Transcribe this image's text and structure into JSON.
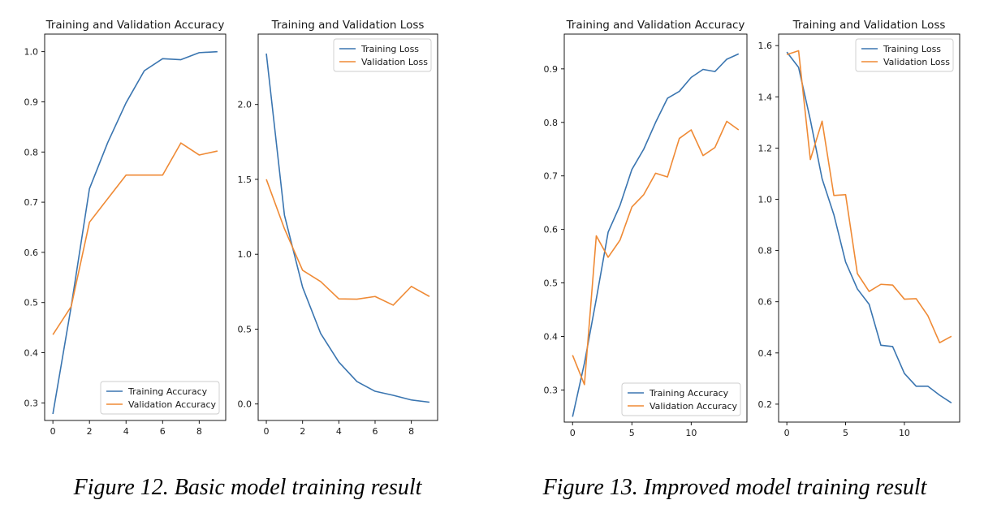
{
  "colors": {
    "training": "#3a75b0",
    "validation": "#ef8a35",
    "axes": "#000000",
    "text": "#1a1a1a"
  },
  "captions": {
    "fig12": "Figure 12. Basic model training result",
    "fig13": "Figure 13. Improved model training result"
  },
  "chart_data": [
    {
      "type": "line",
      "title": "Training and Validation Accuracy",
      "xlabel": "",
      "ylabel": "",
      "xlim": [
        -0.45,
        9.45
      ],
      "ylim": [
        0.265,
        1.035
      ],
      "xticks": [
        0,
        2,
        4,
        6,
        8
      ],
      "xtick_labels": [
        "0",
        "2",
        "4",
        "6",
        "8"
      ],
      "yticks": [
        0.3,
        0.4,
        0.5,
        0.6,
        0.7,
        0.8,
        0.9,
        1.0
      ],
      "ytick_labels": [
        "0.3",
        "0.4",
        "0.5",
        "0.6",
        "0.7",
        "0.8",
        "0.9",
        "1.0"
      ],
      "legend": "lower-right",
      "grid": false,
      "x": [
        0,
        1,
        2,
        3,
        4,
        5,
        6,
        7,
        8,
        9
      ],
      "series": [
        {
          "name": "Training Accuracy",
          "color": "#3a75b0",
          "values": [
            0.278,
            0.492,
            0.727,
            0.819,
            0.898,
            0.962,
            0.986,
            0.984,
            0.998,
            1.0
          ]
        },
        {
          "name": "Validation Accuracy",
          "color": "#ef8a35",
          "values": [
            0.436,
            0.492,
            0.66,
            0.707,
            0.754,
            0.754,
            0.754,
            0.818,
            0.794,
            0.802
          ]
        }
      ]
    },
    {
      "type": "line",
      "title": "Training and Validation Loss",
      "xlabel": "",
      "ylabel": "",
      "xlim": [
        -0.45,
        9.45
      ],
      "ylim": [
        -0.11,
        2.47
      ],
      "xticks": [
        0,
        2,
        4,
        6,
        8
      ],
      "xtick_labels": [
        "0",
        "2",
        "4",
        "6",
        "8"
      ],
      "yticks": [
        0.0,
        0.5,
        1.0,
        1.5,
        2.0
      ],
      "ytick_labels": [
        "0.0",
        "0.5",
        "1.0",
        "1.5",
        "2.0"
      ],
      "legend": "top-right",
      "grid": false,
      "x": [
        0,
        1,
        2,
        3,
        4,
        5,
        6,
        7,
        8,
        9
      ],
      "series": [
        {
          "name": "Training Loss",
          "color": "#3a75b0",
          "values": [
            2.34,
            1.26,
            0.78,
            0.47,
            0.28,
            0.15,
            0.085,
            0.058,
            0.027,
            0.012
          ]
        },
        {
          "name": "Validation Loss",
          "color": "#ef8a35",
          "values": [
            1.5,
            1.17,
            0.893,
            0.817,
            0.702,
            0.7,
            0.718,
            0.66,
            0.785,
            0.718
          ]
        }
      ]
    },
    {
      "type": "line",
      "title": "Training and Validation Accuracy",
      "xlabel": "",
      "ylabel": "",
      "xlim": [
        -0.7,
        14.7
      ],
      "ylim": [
        0.24,
        0.965
      ],
      "xticks": [
        0,
        5,
        10
      ],
      "xtick_labels": [
        "0",
        "5",
        "10"
      ],
      "yticks": [
        0.3,
        0.4,
        0.5,
        0.6,
        0.7,
        0.8,
        0.9
      ],
      "ytick_labels": [
        "0.3",
        "0.4",
        "0.5",
        "0.6",
        "0.7",
        "0.8",
        "0.9"
      ],
      "legend": "lower-right",
      "grid": false,
      "x": [
        0,
        1,
        2,
        3,
        4,
        5,
        6,
        7,
        8,
        9,
        10,
        11,
        12,
        13,
        14
      ],
      "series": [
        {
          "name": "Training Accuracy",
          "color": "#3a75b0",
          "values": [
            0.25,
            0.35,
            0.47,
            0.595,
            0.645,
            0.712,
            0.75,
            0.8,
            0.845,
            0.858,
            0.884,
            0.899,
            0.895,
            0.918,
            0.928
          ]
        },
        {
          "name": "Validation Accuracy",
          "color": "#ef8a35",
          "values": [
            0.365,
            0.31,
            0.588,
            0.548,
            0.58,
            0.642,
            0.665,
            0.705,
            0.698,
            0.77,
            0.786,
            0.738,
            0.753,
            0.802,
            0.786
          ]
        }
      ]
    },
    {
      "type": "line",
      "title": "Training and Validation Loss",
      "xlabel": "",
      "ylabel": "",
      "xlim": [
        -0.7,
        14.7
      ],
      "ylim": [
        0.13,
        1.645
      ],
      "xticks": [
        0,
        5,
        10
      ],
      "xtick_labels": [
        "0",
        "5",
        "10"
      ],
      "yticks": [
        0.2,
        0.4,
        0.6,
        0.8,
        1.0,
        1.2,
        1.4,
        1.6
      ],
      "ytick_labels": [
        "0.2",
        "0.4",
        "0.6",
        "0.8",
        "1.0",
        "1.2",
        "1.4",
        "1.6"
      ],
      "legend": "top-right",
      "grid": false,
      "x": [
        0,
        1,
        2,
        3,
        4,
        5,
        6,
        7,
        8,
        9,
        10,
        11,
        12,
        13,
        14
      ],
      "series": [
        {
          "name": "Training Loss",
          "color": "#3a75b0",
          "values": [
            1.575,
            1.515,
            1.31,
            1.08,
            0.94,
            0.755,
            0.65,
            0.59,
            0.43,
            0.425,
            0.32,
            0.27,
            0.27,
            0.235,
            0.205
          ]
        },
        {
          "name": "Validation Loss",
          "color": "#ef8a35",
          "values": [
            1.565,
            1.58,
            1.155,
            1.305,
            1.015,
            1.018,
            0.71,
            0.64,
            0.668,
            0.665,
            0.61,
            0.612,
            0.545,
            0.44,
            0.465
          ]
        }
      ]
    }
  ]
}
